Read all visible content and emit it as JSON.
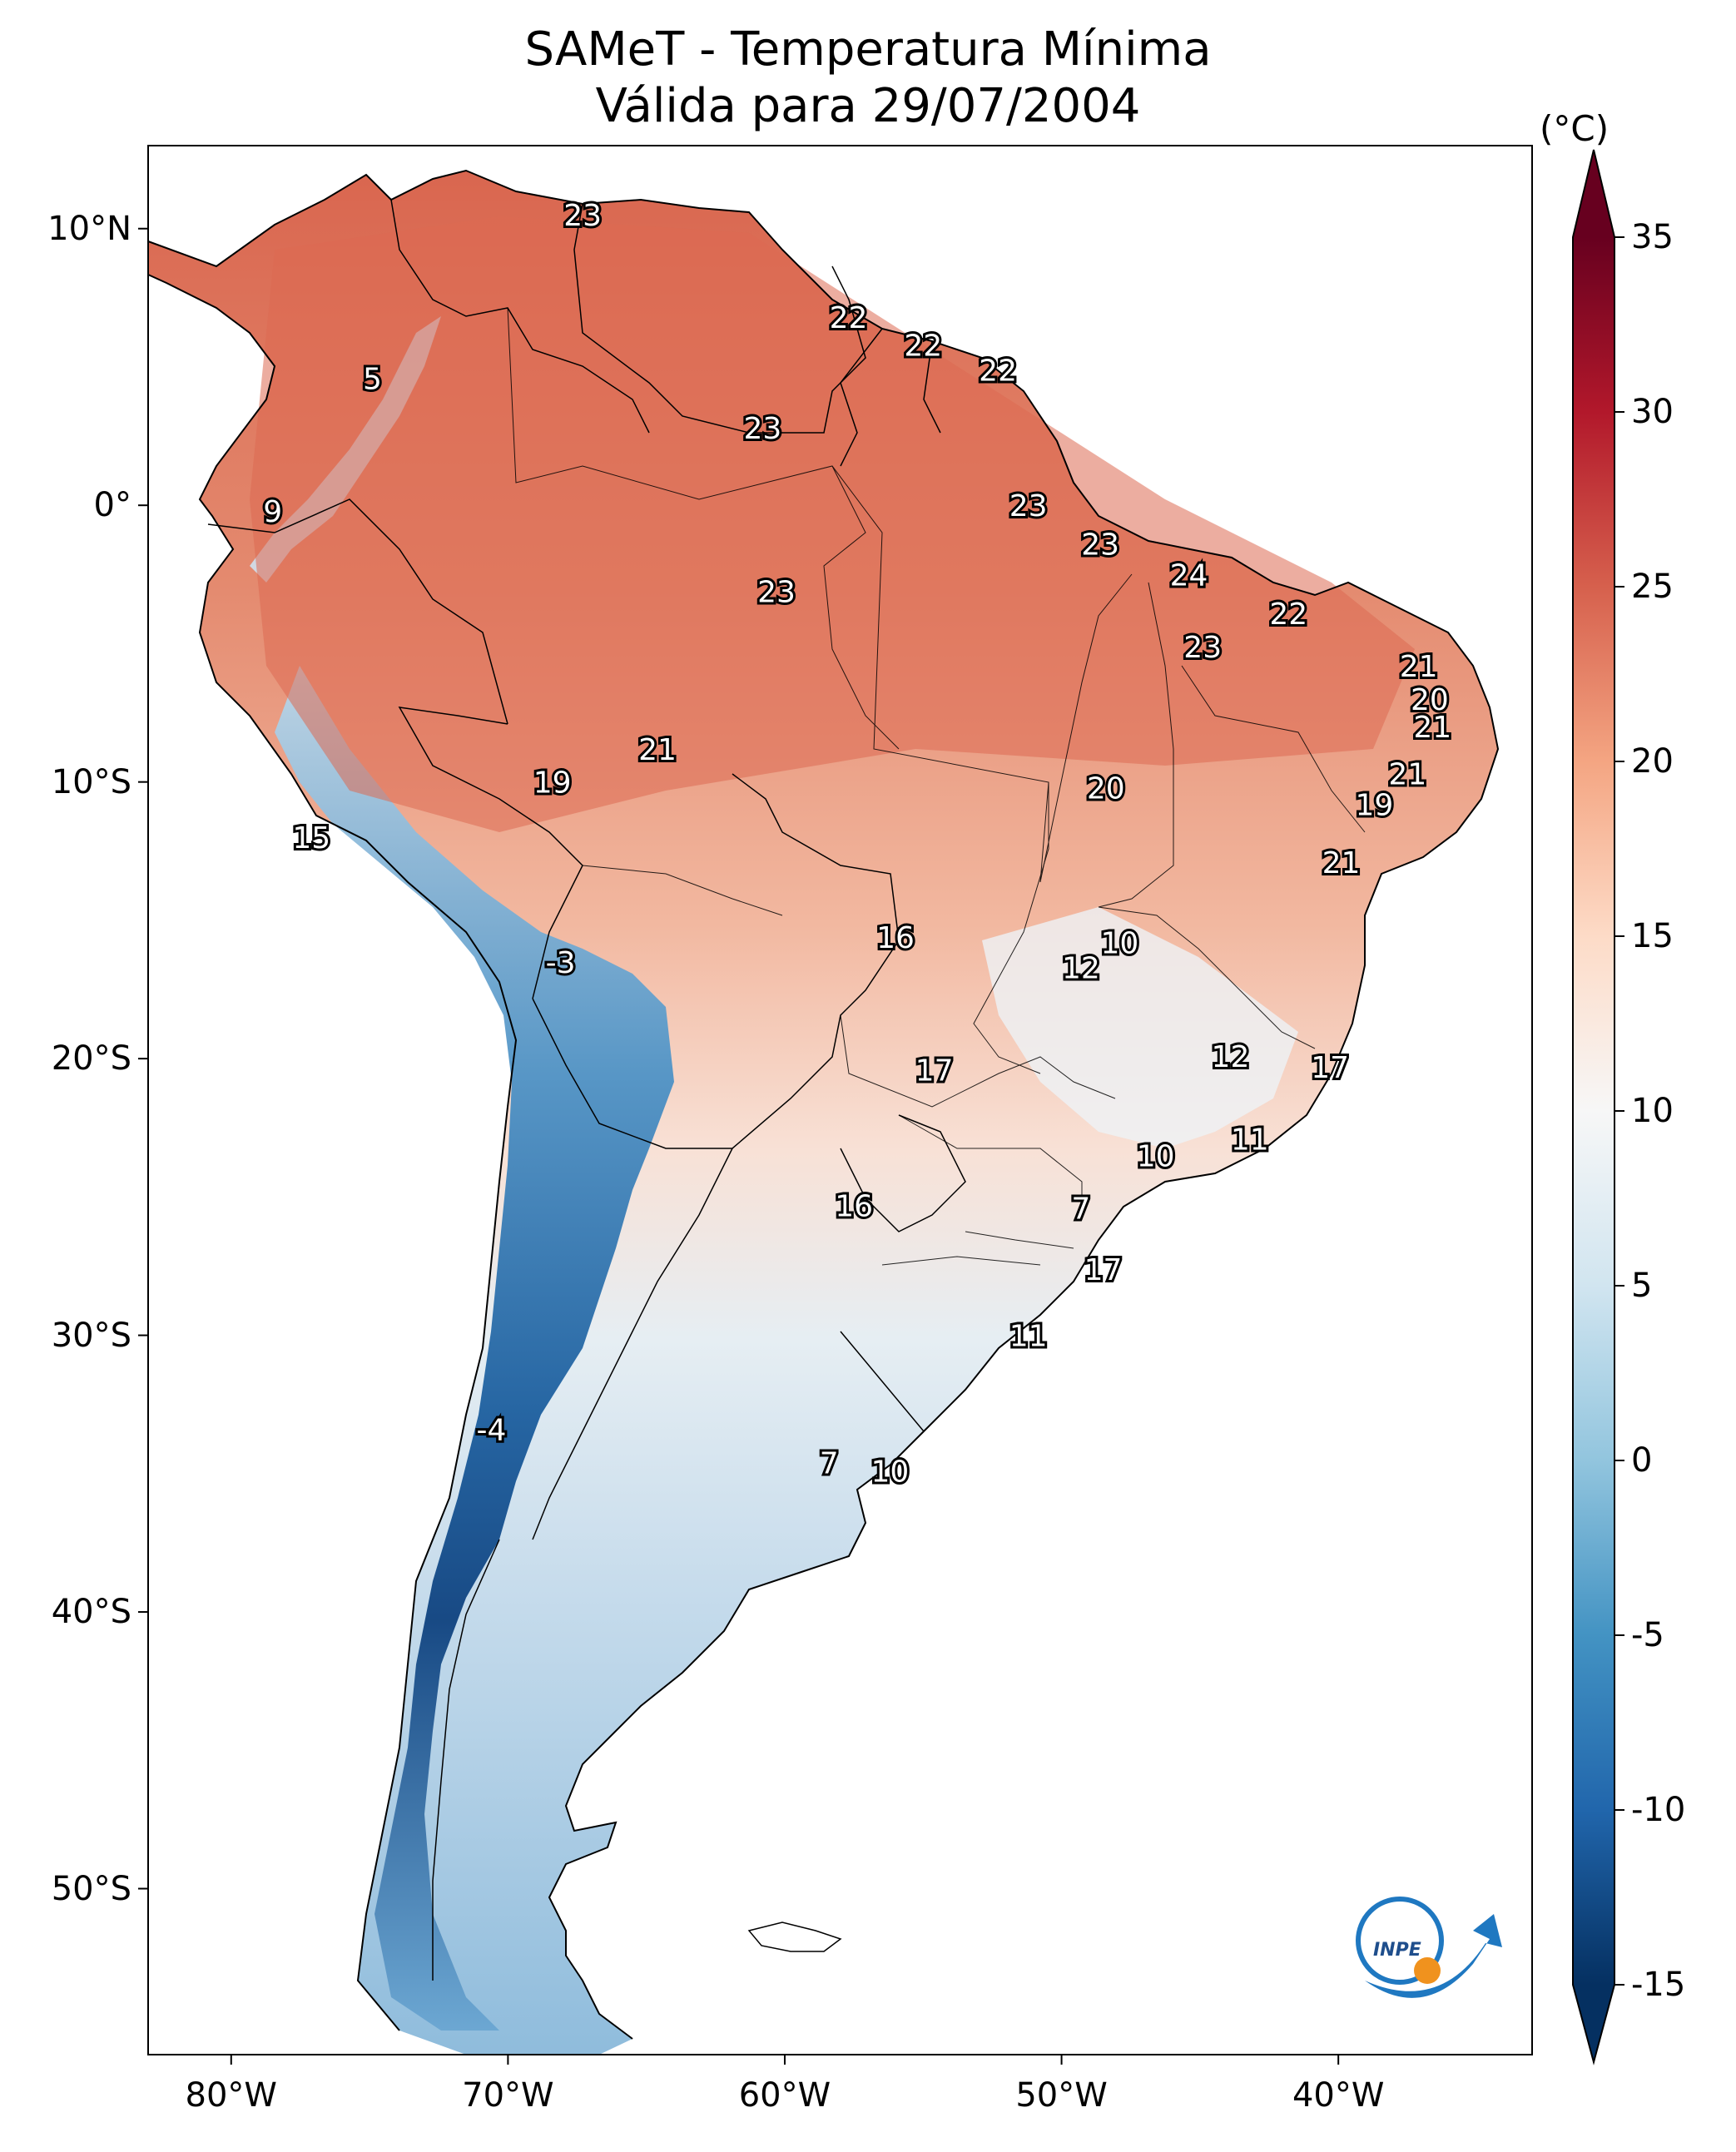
{
  "title": {
    "line1": "SAMeT - Temperatura Mínima",
    "line2": "Válida para 29/07/2004"
  },
  "colorbar": {
    "units": "(°C)",
    "min": -15,
    "max": 35,
    "ticks": [
      "35",
      "30",
      "25",
      "20",
      "15",
      "10",
      "5",
      "0",
      "-5",
      "-10",
      "-15"
    ],
    "colors": [
      "#053061",
      "#2166ac",
      "#4393c3",
      "#92c5de",
      "#d1e5f0",
      "#f7f7f7",
      "#fddbc7",
      "#f4a582",
      "#d6604d",
      "#b2182b",
      "#67001f"
    ]
  },
  "axes": {
    "lat_ticks": [
      "10°N",
      "0°",
      "10°S",
      "20°S",
      "30°S",
      "40°S",
      "50°S"
    ],
    "lon_ticks": [
      "80°W",
      "70°W",
      "60°W",
      "50°W",
      "40°W"
    ],
    "lon_range": [
      -83,
      -33
    ],
    "lat_range": [
      -56,
      13
    ]
  },
  "station_values": [
    {
      "value": "23",
      "lon": -67.3,
      "lat": 10.5
    },
    {
      "value": "5",
      "lon": -74.9,
      "lat": 4.6
    },
    {
      "value": "9",
      "lon": -78.5,
      "lat": -0.2
    },
    {
      "value": "22",
      "lon": -57.7,
      "lat": 6.8
    },
    {
      "value": "22",
      "lon": -55.0,
      "lat": 5.8
    },
    {
      "value": "22",
      "lon": -52.3,
      "lat": 4.9
    },
    {
      "value": "23",
      "lon": -60.8,
      "lat": 2.8
    },
    {
      "value": "23",
      "lon": -51.2,
      "lat": 0.0
    },
    {
      "value": "23",
      "lon": -48.6,
      "lat": -1.4
    },
    {
      "value": "24",
      "lon": -45.4,
      "lat": -2.5
    },
    {
      "value": "22",
      "lon": -41.8,
      "lat": -3.9
    },
    {
      "value": "23",
      "lon": -60.3,
      "lat": -3.1
    },
    {
      "value": "23",
      "lon": -44.9,
      "lat": -5.1
    },
    {
      "value": "21",
      "lon": -37.1,
      "lat": -5.8
    },
    {
      "value": "20",
      "lon": -36.7,
      "lat": -7.0
    },
    {
      "value": "21",
      "lon": -36.6,
      "lat": -8.0
    },
    {
      "value": "21",
      "lon": -64.6,
      "lat": -8.8
    },
    {
      "value": "19",
      "lon": -68.4,
      "lat": -10.0
    },
    {
      "value": "20",
      "lon": -48.4,
      "lat": -10.2
    },
    {
      "value": "21",
      "lon": -37.5,
      "lat": -9.7
    },
    {
      "value": "19",
      "lon": -38.7,
      "lat": -10.8
    },
    {
      "value": "15",
      "lon": -77.1,
      "lat": -12.0
    },
    {
      "value": "21",
      "lon": -39.9,
      "lat": -12.9
    },
    {
      "value": "16",
      "lon": -56.0,
      "lat": -15.6
    },
    {
      "value": "10",
      "lon": -47.9,
      "lat": -15.8
    },
    {
      "value": "12",
      "lon": -49.3,
      "lat": -16.7
    },
    {
      "value": "-3",
      "lon": -68.1,
      "lat": -16.5
    },
    {
      "value": "12",
      "lon": -43.9,
      "lat": -19.9
    },
    {
      "value": "17",
      "lon": -40.3,
      "lat": -20.3
    },
    {
      "value": "17",
      "lon": -54.6,
      "lat": -20.4
    },
    {
      "value": "11",
      "lon": -43.2,
      "lat": -22.9
    },
    {
      "value": "10",
      "lon": -46.6,
      "lat": -23.5
    },
    {
      "value": "16",
      "lon": -57.5,
      "lat": -25.3
    },
    {
      "value": "7",
      "lon": -49.3,
      "lat": -25.4
    },
    {
      "value": "17",
      "lon": -48.5,
      "lat": -27.6
    },
    {
      "value": "11",
      "lon": -51.2,
      "lat": -30.0
    },
    {
      "value": "-4",
      "lon": -70.6,
      "lat": -33.4
    },
    {
      "value": "7",
      "lon": -58.4,
      "lat": -34.6
    },
    {
      "value": "10",
      "lon": -56.2,
      "lat": -34.9
    }
  ],
  "logo": {
    "text": "INPE"
  }
}
